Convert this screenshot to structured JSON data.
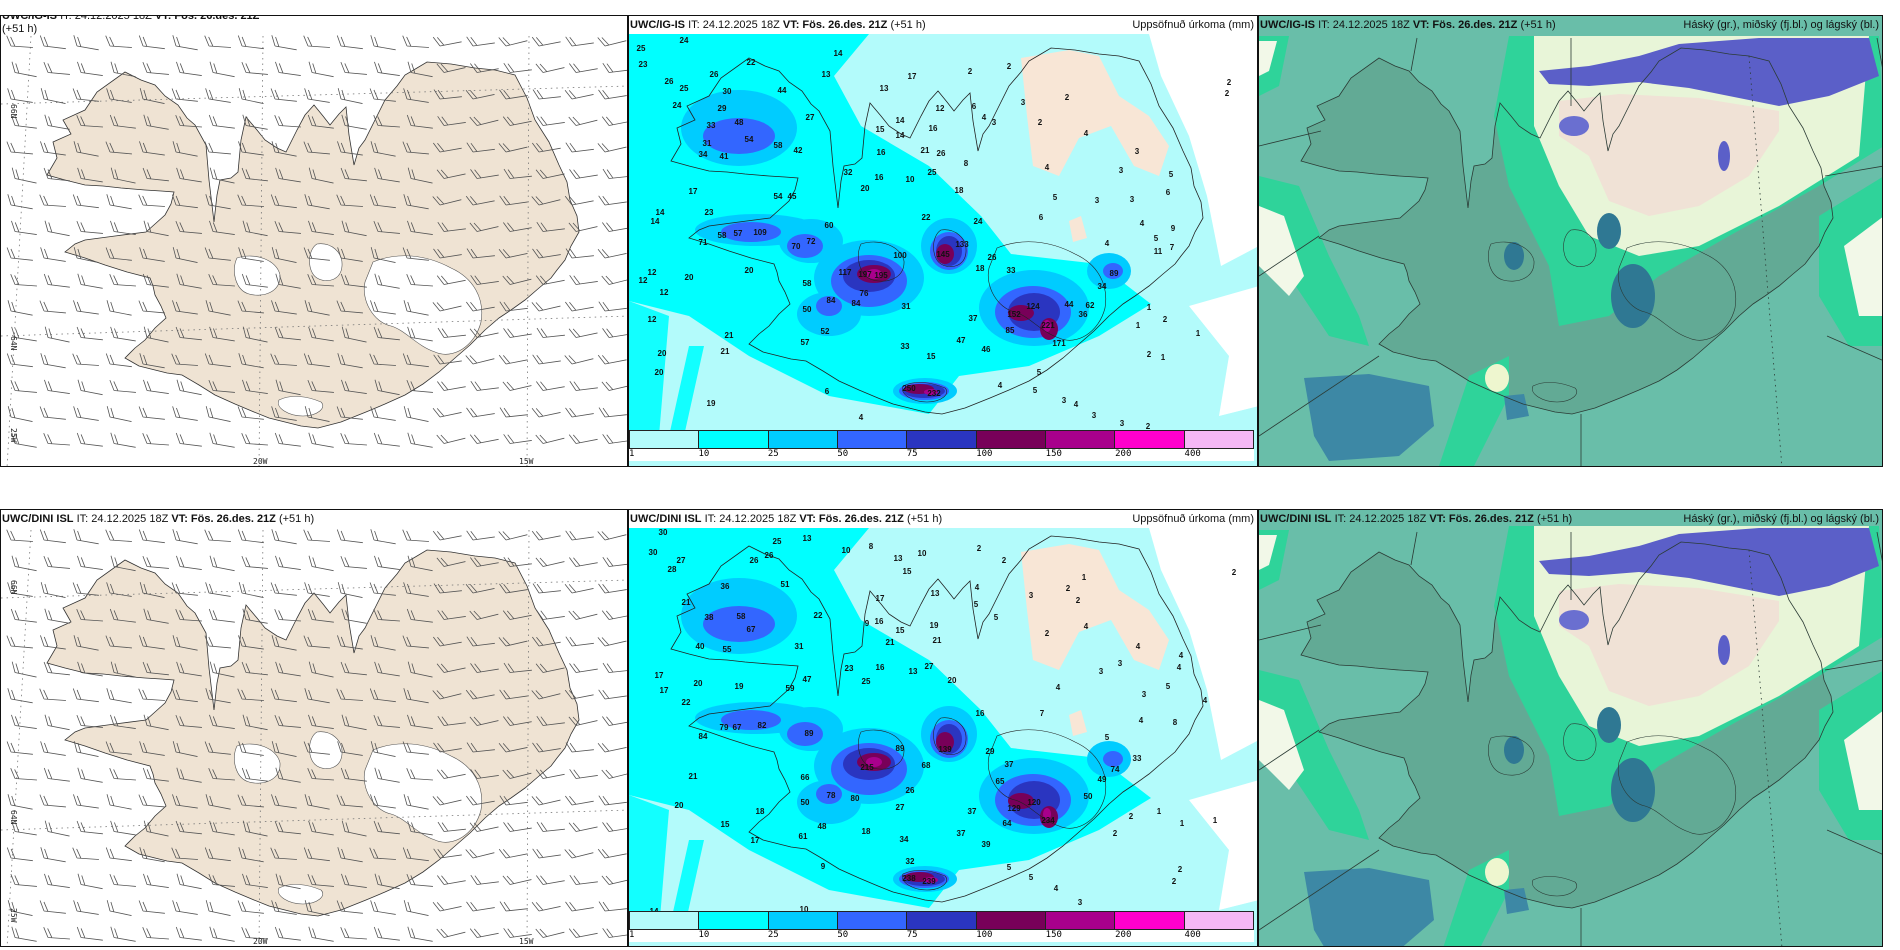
{
  "header": {
    "models": [
      "UWC/IG-IS",
      "UWC/DINI ISL"
    ],
    "it": "IT: 24.12.2025 18Z",
    "vt": "VT: Fös. 26.des. 21Z",
    "lead": "(+51 h)"
  },
  "wind_panel": {
    "axis_labels": {
      "lat": [
        "66N",
        "64N"
      ],
      "lon": [
        "25W",
        "20W",
        "15W"
      ]
    }
  },
  "precip_panel": {
    "subtitle": "Uppsöfnuð úrkoma (mm)",
    "legend": {
      "ticks": [
        "1",
        "10",
        "25",
        "50",
        "75",
        "100",
        "150",
        "200",
        "400"
      ],
      "colors": [
        "#b3fbfb",
        "#00ffff",
        "#00ccff",
        "#3366ff",
        "#2a35c0",
        "#780059",
        "#a8008c",
        "#ff00cc",
        "#f5b8f5"
      ]
    },
    "labels_top": [
      "24",
      "25",
      "23",
      "14",
      "22",
      "26",
      "26",
      "25",
      "13",
      "17",
      "2",
      "2",
      "13",
      "44",
      "24",
      "30",
      "29",
      "48",
      "33",
      "27",
      "12",
      "6",
      "3",
      "2",
      "2",
      "2",
      "15",
      "14",
      "16",
      "4",
      "3",
      "2",
      "4",
      "54",
      "58",
      "42",
      "31",
      "34",
      "41",
      "14",
      "16",
      "21",
      "26",
      "8",
      "3",
      "4",
      "3",
      "5",
      "32",
      "16",
      "10",
      "25",
      "17",
      "20",
      "18",
      "54",
      "45",
      "5",
      "3",
      "3",
      "6",
      "14",
      "14",
      "23",
      "22",
      "24",
      "6",
      "4",
      "9",
      "60",
      "109",
      "58",
      "57",
      "71",
      "72",
      "70",
      "133",
      "145",
      "100",
      "4",
      "5",
      "11",
      "7",
      "12",
      "12",
      "20",
      "20",
      "117",
      "197",
      "195",
      "26",
      "18",
      "33",
      "89",
      "58",
      "76",
      "12",
      "34",
      "84",
      "84",
      "31",
      "124",
      "44",
      "62",
      "36",
      "1",
      "50",
      "152",
      "37",
      "2",
      "12",
      "221",
      "1",
      "85",
      "52",
      "21",
      "1",
      "171",
      "47",
      "57",
      "33",
      "46",
      "21",
      "20",
      "2",
      "1",
      "15",
      "5",
      "20",
      "6",
      "250",
      "232",
      "4",
      "5",
      "3",
      "4",
      "19",
      "3",
      "4",
      "3",
      "2",
      "3"
    ],
    "labels_bottom": [
      "30",
      "25",
      "13",
      "10",
      "8",
      "2",
      "13",
      "10",
      "30",
      "27",
      "28",
      "26",
      "26",
      "15",
      "2",
      "51",
      "36",
      "1",
      "2",
      "21",
      "17",
      "13",
      "4",
      "3",
      "2",
      "2",
      "5",
      "22",
      "38",
      "58",
      "5",
      "9",
      "16",
      "19",
      "4",
      "67",
      "15",
      "2",
      "21",
      "21",
      "4",
      "4",
      "40",
      "55",
      "31",
      "3",
      "4",
      "23",
      "16",
      "13",
      "27",
      "3",
      "17",
      "20",
      "19",
      "47",
      "25",
      "20",
      "4",
      "5",
      "17",
      "59",
      "3",
      "4",
      "22",
      "16",
      "7",
      "4",
      "8",
      "79",
      "67",
      "82",
      "84",
      "89",
      "5",
      "89",
      "139",
      "29",
      "33",
      "68",
      "215",
      "37",
      "74",
      "21",
      "66",
      "49",
      "65",
      "26",
      "78",
      "80",
      "50",
      "120",
      "50",
      "20",
      "27",
      "129",
      "1",
      "18",
      "37",
      "2",
      "234",
      "64",
      "1",
      "1",
      "15",
      "48",
      "18",
      "37",
      "2",
      "61",
      "34",
      "17",
      "39",
      "32",
      "9",
      "5",
      "5",
      "2",
      "2",
      "238",
      "239",
      "4",
      "3",
      "14",
      "10",
      "2",
      "3"
    ]
  },
  "cloud_panel": {
    "subtitle": "Háský (gr.), miðský (fj.bl.) og lágský (bl.)"
  }
}
